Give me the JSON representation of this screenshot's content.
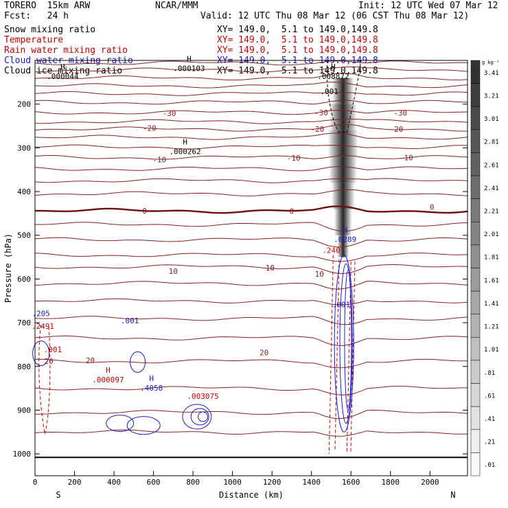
{
  "header": {
    "model": "TORERO  15km ARW",
    "center": "NCAR/MMM",
    "init": "Init: 12 UTC Wed 07 Mar 12",
    "fcst": "Fcst:   24 h",
    "valid": "Valid: 12 UTC Thu 08 Mar 12 (06 CST Thu 08 Mar 12)"
  },
  "legend": [
    {
      "label": "Snow mixing ratio",
      "xy": "XY= 149.0,  5.1 to 149.0,149.8",
      "color": "#000000"
    },
    {
      "label": "Temperature",
      "xy": "XY= 149.0,  5.1 to 149.0,149.8",
      "color": "#cc0000"
    },
    {
      "label": "Rain water mixing ratio",
      "xy": "XY= 149.0,  5.1 to 149.0,149.8",
      "color": "#cc0000"
    },
    {
      "label": "Cloud water mixing ratio",
      "xy": "XY= 149.0,  5.1 to 149.0,149.8",
      "color": "#1a1acc"
    },
    {
      "label": "Cloud ice mixing ratio",
      "xy": "XY= 149.0,  5.1 to 149.0,149.8",
      "color": "#000000"
    }
  ],
  "chart_data": {
    "type": "contour",
    "xlabel": "Distance (km)",
    "ylabel": "Pressure (hPa)",
    "xlim": [
      0,
      2190
    ],
    "ylim": [
      1050,
      100
    ],
    "x_ticks": [
      0,
      200,
      400,
      600,
      800,
      1000,
      1200,
      1400,
      1600,
      1800,
      2000
    ],
    "y_ticks": [
      200,
      300,
      400,
      500,
      600,
      700,
      800,
      900,
      1000
    ],
    "x_end_labels": {
      "left": "S",
      "right": "N"
    },
    "colorbar": {
      "unit": "g kg⁻¹",
      "labels": [
        "3.41",
        "3.21",
        "3.01",
        "2.81",
        "2.61",
        "2.41",
        "2.21",
        "2.01",
        "1.81",
        "1.61",
        "1.41",
        "1.21",
        "1.01",
        ".81",
        ".61",
        ".41",
        ".21",
        ".01"
      ]
    },
    "temperature_labels": [
      {
        "text": "-30",
        "x": 680,
        "p": 221
      },
      {
        "text": "-30",
        "x": 1450,
        "p": 219
      },
      {
        "text": "-30",
        "x": 1850,
        "p": 220
      },
      {
        "text": "-20",
        "x": 580,
        "p": 255
      },
      {
        "text": "-20",
        "x": 1430,
        "p": 257
      },
      {
        "text": "-20",
        "x": 1830,
        "p": 257
      },
      {
        "text": "-10",
        "x": 630,
        "p": 327
      },
      {
        "text": "-10",
        "x": 1310,
        "p": 323
      },
      {
        "text": "-10",
        "x": 1880,
        "p": 322
      },
      {
        "text": "0",
        "x": 555,
        "p": 444
      },
      {
        "text": "0",
        "x": 1300,
        "p": 445
      },
      {
        "text": "0",
        "x": 2010,
        "p": 435
      },
      {
        "text": "10",
        "x": 700,
        "p": 582
      },
      {
        "text": "10",
        "x": 1190,
        "p": 574
      },
      {
        "text": "10",
        "x": 1440,
        "p": 588
      },
      {
        "text": "20",
        "x": 70,
        "p": 788
      },
      {
        "text": "20",
        "x": 280,
        "p": 786
      },
      {
        "text": "20",
        "x": 1160,
        "p": 768
      }
    ],
    "extrema_labels": [
      {
        "marker": "H",
        "value": ".000044",
        "x": 140,
        "p": 136,
        "color": "#000000"
      },
      {
        "marker": "H",
        "value": ".000103",
        "x": 780,
        "p": 118,
        "color": "#000000"
      },
      {
        "marker": "H",
        "value": ".008872",
        "x": 1510,
        "p": 136,
        "color": "#000000"
      },
      {
        "marker": "",
        "value": ".001",
        "x": 1490,
        "p": 171,
        "color": "#000000"
      },
      {
        "marker": "H",
        "value": ".000262",
        "x": 760,
        "p": 308,
        "color": "#000000"
      },
      {
        "marker": "H",
        "value": ".0289",
        "x": 1570,
        "p": 509,
        "color": "#1a1acc"
      },
      {
        "marker": "",
        "value": ".240",
        "x": 1500,
        "p": 534,
        "color": "#cc0000"
      },
      {
        "marker": "",
        "value": ".001",
        "x": 1550,
        "p": 658,
        "color": "#1a1acc"
      },
      {
        "marker": "",
        "value": ".205",
        "x": 30,
        "p": 679,
        "color": "#1a1acc"
      },
      {
        "marker": "",
        "value": ".001",
        "x": 480,
        "p": 695,
        "color": "#1a1acc"
      },
      {
        "marker": "",
        "value": ".2491",
        "x": 40,
        "p": 708,
        "color": "#cc0000"
      },
      {
        "marker": "",
        "value": ".001",
        "x": 90,
        "p": 761,
        "color": "#cc0000"
      },
      {
        "marker": "H",
        "value": ".000097",
        "x": 370,
        "p": 830,
        "color": "#cc0000"
      },
      {
        "marker": "H",
        "value": ".4058",
        "x": 590,
        "p": 849,
        "color": "#1a1acc"
      },
      {
        "marker": "",
        "value": ".003075",
        "x": 850,
        "p": 868,
        "color": "#cc0000"
      }
    ]
  }
}
